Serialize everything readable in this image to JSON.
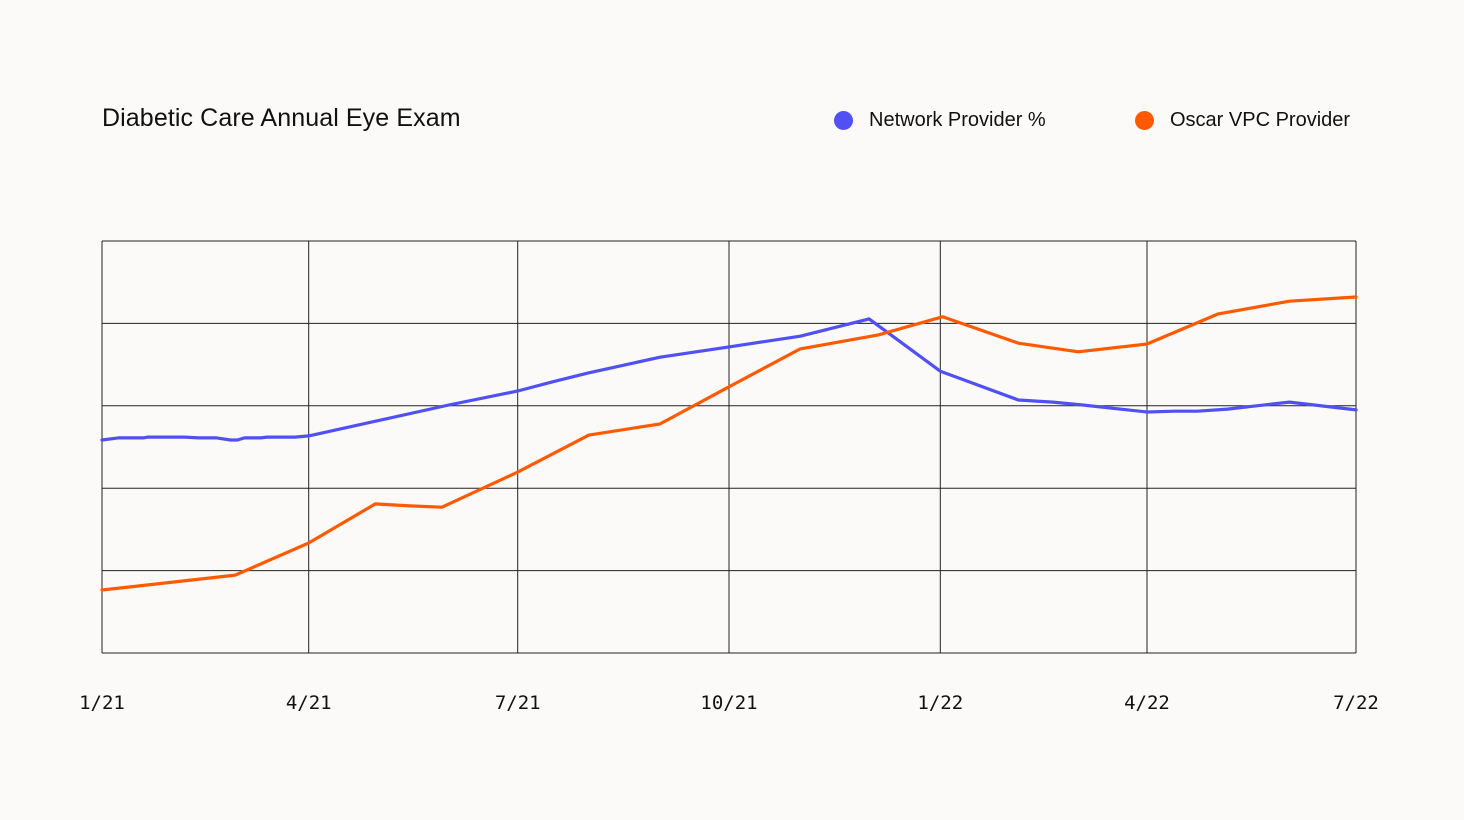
{
  "chart_data": {
    "type": "line",
    "title": "Diabetic Care Annual Eye Exam",
    "xlabel": "",
    "ylabel": "",
    "x_ticks": [
      "1/21",
      "4/21",
      "7/21",
      "10/21",
      "1/22",
      "4/22",
      "7/22"
    ],
    "x_tick_dates": [
      "2021-01-01",
      "2021-04-01",
      "2021-07-01",
      "2021-10-01",
      "2022-01-01",
      "2022-04-01",
      "2022-07-01"
    ],
    "xlim": [
      "2021-01-01",
      "2022-07-01"
    ],
    "ylim": [
      0,
      100
    ],
    "y_scale_note_hidden": true,
    "y_gridlines": [
      0,
      20,
      40,
      60,
      80,
      100
    ],
    "grid": true,
    "legend_position": "top-right",
    "series": [
      {
        "name": "Network Provider %",
        "color": "#5050f5",
        "points": [
          [
            "2021-01-01",
            51.7
          ],
          [
            "2021-01-08",
            52.2
          ],
          [
            "2021-01-19",
            52.2
          ],
          [
            "2021-01-21",
            52.4
          ],
          [
            "2021-02-06",
            52.4
          ],
          [
            "2021-02-12",
            52.2
          ],
          [
            "2021-02-20",
            52.2
          ],
          [
            "2021-02-26",
            51.7
          ],
          [
            "2021-03-01",
            51.7
          ],
          [
            "2021-03-04",
            52.2
          ],
          [
            "2021-03-11",
            52.2
          ],
          [
            "2021-03-14",
            52.4
          ],
          [
            "2021-03-26",
            52.4
          ],
          [
            "2021-04-01",
            52.7
          ],
          [
            "2021-06-01",
            60.2
          ],
          [
            "2021-07-01",
            63.6
          ],
          [
            "2021-07-16",
            65.8
          ],
          [
            "2021-08-01",
            68.0
          ],
          [
            "2021-09-01",
            71.8
          ],
          [
            "2021-10-01",
            74.3
          ],
          [
            "2021-11-01",
            76.9
          ],
          [
            "2021-12-01",
            81.1
          ],
          [
            "2022-01-01",
            68.4
          ],
          [
            "2022-02-04",
            61.4
          ],
          [
            "2022-02-19",
            60.9
          ],
          [
            "2022-03-04",
            60.2
          ],
          [
            "2022-04-01",
            58.5
          ],
          [
            "2022-04-13",
            58.7
          ],
          [
            "2022-04-23",
            58.7
          ],
          [
            "2022-05-06",
            59.2
          ],
          [
            "2022-06-02",
            60.9
          ],
          [
            "2022-07-01",
            59.0
          ]
        ]
      },
      {
        "name": "Oscar VPC Provider",
        "color": "#ff5a00",
        "points": [
          [
            "2021-01-01",
            15.3
          ],
          [
            "2021-02-28",
            18.9
          ],
          [
            "2021-04-01",
            26.7
          ],
          [
            "2021-04-30",
            36.2
          ],
          [
            "2021-05-15",
            35.7
          ],
          [
            "2021-05-29",
            35.4
          ],
          [
            "2021-07-01",
            43.9
          ],
          [
            "2021-08-01",
            52.9
          ],
          [
            "2021-09-01",
            55.6
          ],
          [
            "2021-10-01",
            64.6
          ],
          [
            "2021-11-01",
            73.8
          ],
          [
            "2021-12-05",
            77.2
          ],
          [
            "2022-01-02",
            81.6
          ],
          [
            "2022-02-04",
            75.2
          ],
          [
            "2022-03-02",
            73.1
          ],
          [
            "2022-04-01",
            75.0
          ],
          [
            "2022-05-02",
            82.3
          ],
          [
            "2022-06-02",
            85.4
          ],
          [
            "2022-07-01",
            86.4
          ]
        ]
      }
    ]
  }
}
